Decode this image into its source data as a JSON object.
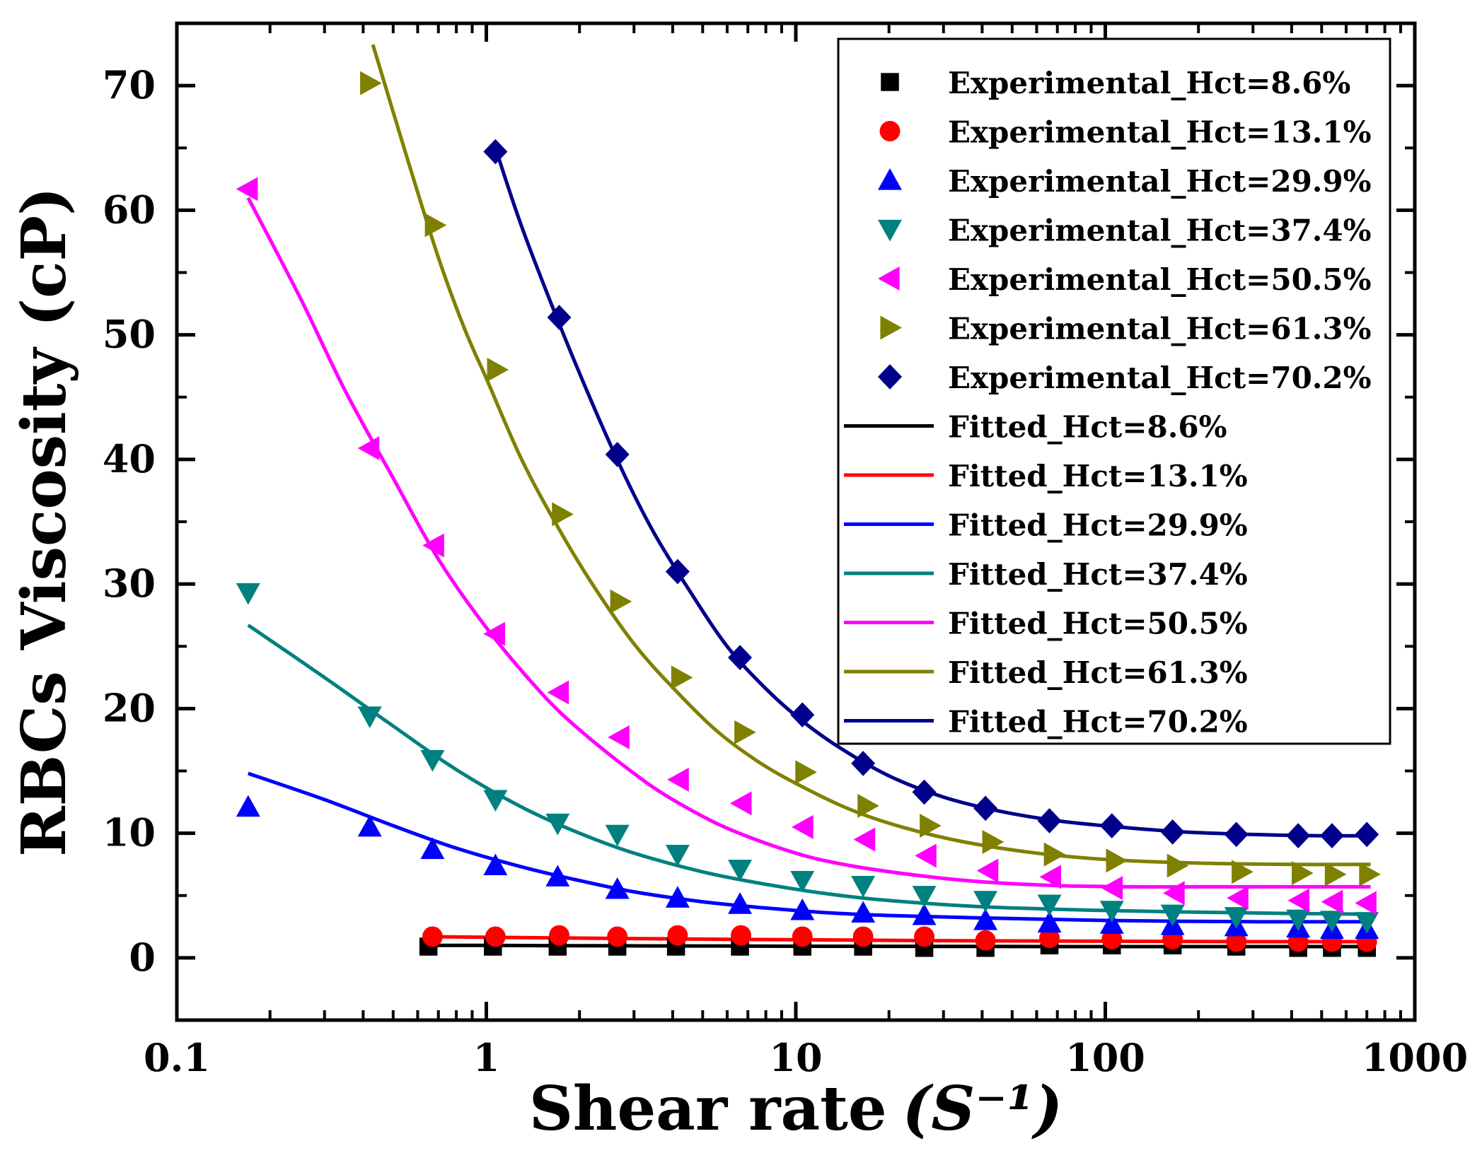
{
  "chart_data": {
    "type": "scatter",
    "title": "",
    "xlabel": "Shear rate",
    "xlabel_unit": "(S⁻¹)",
    "ylabel": "RBCs Viscosity (cP)",
    "xscale": "log",
    "xlim": [
      0.1,
      1000
    ],
    "ylim": [
      -5,
      75
    ],
    "x_ticks": [
      {
        "value": 0.1,
        "label": "0.1"
      },
      {
        "value": 1,
        "label": "1"
      },
      {
        "value": 10,
        "label": "10"
      },
      {
        "value": 100,
        "label": "100"
      },
      {
        "value": 1000,
        "label": "1000"
      }
    ],
    "y_ticks": [
      {
        "value": 0,
        "label": "0"
      },
      {
        "value": 10,
        "label": "10"
      },
      {
        "value": 20,
        "label": "20"
      },
      {
        "value": 30,
        "label": "30"
      },
      {
        "value": 40,
        "label": "40"
      },
      {
        "value": 50,
        "label": "50"
      },
      {
        "value": 60,
        "label": "60"
      },
      {
        "value": 70,
        "label": "70"
      }
    ],
    "legend_position": "top-right",
    "series": [
      {
        "name": "Experimental_Hct=8.6%",
        "kind": "markers",
        "marker": "square",
        "color": "#000000",
        "x": [
          0.65,
          1.05,
          1.7,
          2.65,
          4.1,
          6.6,
          10.5,
          16.5,
          26,
          41,
          66,
          105,
          165,
          265,
          420,
          540,
          700
        ],
        "y": [
          0.9,
          0.9,
          0.9,
          0.9,
          0.9,
          0.9,
          0.9,
          0.9,
          0.8,
          0.8,
          1.0,
          1.0,
          1.0,
          0.9,
          0.8,
          0.8,
          0.8
        ]
      },
      {
        "name": "Experimental_Hct=13.1%",
        "kind": "markers",
        "marker": "circle",
        "color": "#ff0000",
        "x": [
          0.67,
          1.07,
          1.72,
          2.65,
          4.15,
          6.65,
          10.5,
          16.5,
          26,
          41,
          66,
          105,
          165,
          265,
          420,
          540,
          700
        ],
        "y": [
          1.7,
          1.7,
          1.8,
          1.7,
          1.8,
          1.8,
          1.7,
          1.7,
          1.7,
          1.4,
          1.6,
          1.5,
          1.5,
          1.3,
          1.3,
          1.3,
          1.3
        ]
      },
      {
        "name": "Experimental_Hct=29.9%",
        "kind": "markers",
        "marker": "triangle-up",
        "color": "#0000ff",
        "x": [
          0.17,
          0.42,
          0.67,
          1.07,
          1.7,
          2.65,
          4.15,
          6.6,
          10.5,
          16.5,
          26,
          41,
          66,
          105,
          165,
          265,
          420,
          540,
          700
        ],
        "y": [
          12.1,
          10.5,
          8.7,
          7.4,
          6.5,
          5.5,
          4.8,
          4.3,
          3.8,
          3.6,
          3.4,
          3.0,
          2.8,
          2.7,
          2.6,
          2.5,
          2.4,
          2.3,
          2.3
        ]
      },
      {
        "name": "Experimental_Hct=37.4%",
        "kind": "markers",
        "marker": "triangle-down",
        "color": "#008080",
        "x": [
          0.17,
          0.42,
          0.67,
          1.07,
          1.7,
          2.65,
          4.15,
          6.6,
          10.5,
          16.5,
          26,
          41,
          66,
          105,
          165,
          265,
          420,
          540,
          700
        ],
        "y": [
          29.3,
          19.4,
          15.9,
          12.7,
          10.8,
          9.9,
          8.3,
          7.1,
          6.2,
          5.8,
          5.0,
          4.6,
          4.3,
          3.8,
          3.5,
          3.3,
          3.1,
          3.0,
          2.9
        ]
      },
      {
        "name": "Experimental_Hct=50.5%",
        "kind": "markers",
        "marker": "triangle-left",
        "color": "#ff00ff",
        "x": [
          0.17,
          0.42,
          0.68,
          1.07,
          1.72,
          2.7,
          4.2,
          6.7,
          10.6,
          16.8,
          26.5,
          42,
          67,
          106,
          168,
          270,
          425,
          545,
          700
        ],
        "y": [
          61.7,
          40.9,
          33.1,
          26.0,
          21.3,
          17.7,
          14.3,
          12.4,
          10.5,
          9.5,
          8.2,
          7.0,
          6.5,
          5.6,
          5.2,
          4.8,
          4.6,
          4.5,
          4.4
        ]
      },
      {
        "name": "Experimental_Hct=61.3%",
        "kind": "markers",
        "marker": "triangle-right",
        "color": "#808000",
        "x": [
          0.42,
          0.68,
          1.08,
          1.75,
          2.7,
          4.25,
          6.8,
          10.7,
          17,
          27,
          43,
          68,
          108,
          170,
          275,
          430,
          550,
          710
        ],
        "y": [
          70.2,
          58.8,
          47.2,
          35.6,
          28.6,
          22.5,
          18.1,
          14.9,
          12.2,
          10.6,
          9.3,
          8.3,
          7.8,
          7.4,
          6.9,
          6.8,
          6.7,
          6.7
        ]
      },
      {
        "name": "Experimental_Hct=70.2%",
        "kind": "markers",
        "marker": "diamond",
        "color": "#00008b",
        "x": [
          1.07,
          1.72,
          2.65,
          4.15,
          6.6,
          10.5,
          16.5,
          26,
          41,
          66,
          105,
          165,
          265,
          420,
          540,
          700
        ],
        "y": [
          64.7,
          51.4,
          40.4,
          31.0,
          24.1,
          19.5,
          15.6,
          13.3,
          12.0,
          11.0,
          10.6,
          10.1,
          9.9,
          9.8,
          9.8,
          9.9
        ]
      },
      {
        "name": "Fitted_Hct=8.6%",
        "kind": "line",
        "color": "#000000",
        "x": [
          0.62,
          1,
          2,
          5,
          10,
          30,
          100,
          300,
          720
        ],
        "y": [
          1.0,
          1.0,
          0.97,
          0.95,
          0.93,
          0.92,
          0.9,
          0.9,
          0.9
        ]
      },
      {
        "name": "Fitted_Hct=13.1%",
        "kind": "line",
        "color": "#ff0000",
        "x": [
          0.65,
          1,
          2,
          5,
          10,
          30,
          100,
          300,
          720
        ],
        "y": [
          1.7,
          1.65,
          1.58,
          1.5,
          1.45,
          1.38,
          1.33,
          1.3,
          1.3
        ]
      },
      {
        "name": "Fitted_Hct=29.9%",
        "kind": "line",
        "color": "#0000ff",
        "x": [
          0.17,
          0.3,
          0.5,
          0.8,
          1.3,
          2,
          3,
          5,
          8,
          13,
          20,
          40,
          100,
          300,
          720
        ],
        "y": [
          14.8,
          12.7,
          10.6,
          8.8,
          7.3,
          6.2,
          5.3,
          4.5,
          4.0,
          3.6,
          3.4,
          3.2,
          3.0,
          2.9,
          2.9
        ]
      },
      {
        "name": "Fitted_Hct=37.4%",
        "kind": "line",
        "color": "#008080",
        "x": [
          0.17,
          0.3,
          0.5,
          0.8,
          1.3,
          2,
          3,
          5,
          8,
          13,
          20,
          40,
          100,
          300,
          720
        ],
        "y": [
          26.7,
          22.5,
          18.6,
          15.1,
          12.1,
          10.0,
          8.4,
          6.9,
          5.9,
          5.1,
          4.6,
          4.1,
          3.8,
          3.6,
          3.5
        ]
      },
      {
        "name": "Fitted_Hct=50.5%",
        "kind": "line",
        "color": "#ff00ff",
        "x": [
          0.17,
          0.25,
          0.35,
          0.5,
          0.7,
          1,
          1.5,
          2,
          3,
          4,
          6,
          10,
          15,
          25,
          40,
          70,
          120,
          200,
          400,
          720
        ],
        "y": [
          61.0,
          53.0,
          45.5,
          38.5,
          32.0,
          26.5,
          21.3,
          18.3,
          14.8,
          12.7,
          10.4,
          8.4,
          7.4,
          6.6,
          6.1,
          5.8,
          5.7,
          5.7,
          5.7,
          5.7
        ]
      },
      {
        "name": "Fitted_Hct=61.3%",
        "kind": "line",
        "color": "#808000",
        "x": [
          0.43,
          0.55,
          0.7,
          0.85,
          1,
          1.3,
          1.7,
          2.2,
          3,
          4,
          5.5,
          7.5,
          10,
          15,
          22,
          35,
          60,
          100,
          200,
          400,
          720
        ],
        "y": [
          73.3,
          64.5,
          56.2,
          50.5,
          46.5,
          40.0,
          34.6,
          30.0,
          25.2,
          21.7,
          18.3,
          15.8,
          14.0,
          11.9,
          10.5,
          9.3,
          8.4,
          7.9,
          7.6,
          7.5,
          7.5
        ]
      },
      {
        "name": "Fitted_Hct=70.2%",
        "kind": "line",
        "color": "#00008b",
        "x": [
          1.07,
          1.3,
          1.7,
          2.2,
          2.8,
          3.5,
          4.5,
          6,
          8,
          10.5,
          14,
          20,
          30,
          45,
          70,
          110,
          180,
          300,
          500,
          720
        ],
        "y": [
          65.0,
          58.7,
          51.2,
          44.5,
          38.7,
          34.0,
          29.6,
          25.0,
          21.6,
          19.0,
          16.8,
          14.6,
          12.9,
          11.8,
          11.0,
          10.5,
          10.1,
          9.9,
          9.8,
          9.8
        ]
      }
    ]
  }
}
